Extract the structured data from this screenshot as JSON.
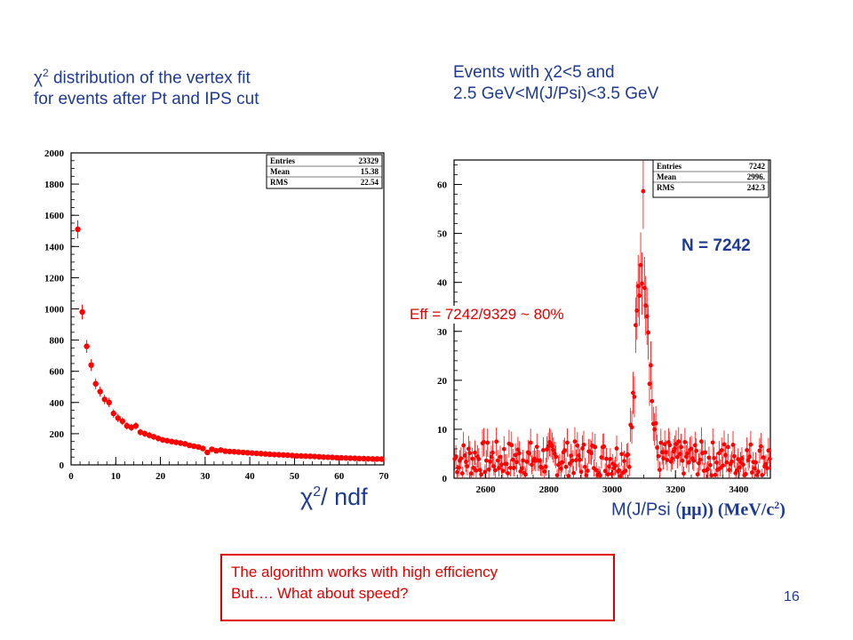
{
  "captions": {
    "left_line1_pre": "χ",
    "left_line1_sup": "2",
    "left_line1_post": " distribution of the vertex fit",
    "left_line2": "for events after Pt and IPS cut",
    "right_line1": "Events with χ2<5 and",
    "right_line2": "2.5 GeV<M(J/Psi)<3.5 GeV"
  },
  "annotations": {
    "n_label": "N = 7242",
    "eff_label": "Eff = 7242/9329 ~ 80%"
  },
  "note": {
    "line1": "The algorithm works with high efficiency",
    "line2": "But…. What about speed?"
  },
  "page_number": "16",
  "colors": {
    "caption": "#1f3a93",
    "marker": "#ff0000",
    "note": "#e00000"
  },
  "chart_data": [
    {
      "type": "scatter",
      "xlabel_pre": "χ",
      "xlabel_sup": "2",
      "xlabel_post": "/ ndf",
      "xlim": [
        0,
        70
      ],
      "ylim": [
        0,
        2000
      ],
      "x_ticks": [
        0,
        10,
        20,
        30,
        40,
        50,
        60,
        70
      ],
      "y_ticks": [
        0,
        200,
        400,
        600,
        800,
        1000,
        1200,
        1400,
        1600,
        1800,
        2000
      ],
      "stats": [
        {
          "label": "Entries",
          "value": "23329"
        },
        {
          "label": "Mean",
          "value": "15.38"
        },
        {
          "label": "RMS",
          "value": "22.54"
        }
      ],
      "x": [
        1.5,
        2.5,
        3.5,
        4.5,
        5.5,
        6.5,
        7.5,
        8.5,
        9.5,
        10.5,
        11.5,
        12.5,
        13.5,
        14.5,
        15.5,
        16.5,
        17.5,
        18.5,
        19.5,
        20.5,
        21.5,
        22.5,
        23.5,
        24.5,
        25.5,
        26.5,
        27.5,
        28.5,
        29.5,
        30.5,
        31.5,
        32.5,
        33.5,
        34.5,
        35.5,
        36.5,
        37.5,
        38.5,
        39.5,
        40.5,
        41.5,
        42.5,
        43.5,
        44.5,
        45.5,
        46.5,
        47.5,
        48.5,
        49.5,
        50.5,
        51.5,
        52.5,
        53.5,
        54.5,
        55.5,
        56.5,
        57.5,
        58.5,
        59.5,
        60.5,
        61.5,
        62.5,
        63.5,
        64.5,
        65.5,
        66.5,
        67.5,
        68.5,
        69.5
      ],
      "y": [
        1510,
        980,
        760,
        640,
        520,
        470,
        420,
        400,
        330,
        300,
        280,
        250,
        240,
        250,
        210,
        200,
        190,
        180,
        170,
        160,
        155,
        150,
        145,
        140,
        135,
        125,
        120,
        115,
        105,
        80,
        100,
        90,
        95,
        88,
        86,
        84,
        82,
        80,
        78,
        76,
        74,
        72,
        70,
        68,
        66,
        65,
        64,
        62,
        60,
        58,
        57,
        56,
        55,
        54,
        52,
        50,
        49,
        48,
        46,
        45,
        44,
        43,
        42,
        41,
        40,
        39,
        38,
        38,
        37
      ]
    },
    {
      "type": "scatter",
      "xlim": [
        2500,
        3500
      ],
      "ylim": [
        0,
        65
      ],
      "x_ticks": [
        2600,
        2800,
        3000,
        3200,
        3400
      ],
      "y_ticks": [
        0,
        10,
        20,
        30,
        40,
        50,
        60
      ],
      "stats": [
        {
          "label": "Entries",
          "value": "7242"
        },
        {
          "label": "Mean",
          "value": "2996."
        },
        {
          "label": "RMS",
          "value": "242.3"
        }
      ],
      "xlabel_pre": "M(J/Psi (",
      "xlabel_mu": "μμ",
      "xlabel_post": ")) (MeV/c",
      "xlabel_sup": "2",
      "xlabel_end": ")",
      "peak": {
        "center": 3097,
        "sigma": 18,
        "amplitude": 46,
        "background": 4
      }
    }
  ]
}
